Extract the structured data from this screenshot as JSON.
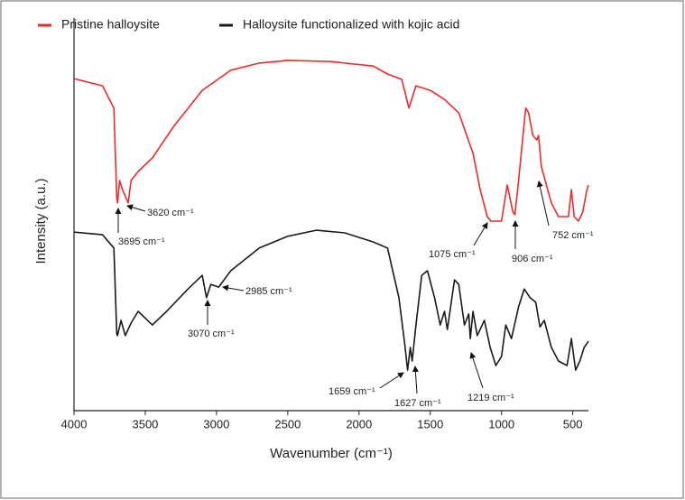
{
  "chart_data": {
    "type": "line",
    "xlabel": "Wavenumber (cm⁻¹)",
    "ylabel": "Intensity (a.u.)",
    "xlim": [
      4000,
      390
    ],
    "xticks": [
      4000,
      3500,
      3000,
      2500,
      2000,
      1500,
      1000,
      500
    ],
    "ylim": [
      0,
      100
    ],
    "grid": false,
    "legend": "top",
    "series": [
      {
        "name": "Pristine halloysite",
        "color": "#f0282a",
        "x": [
          4000,
          3800,
          3720,
          3700,
          3695,
          3680,
          3660,
          3620,
          3600,
          3550,
          3450,
          3300,
          3100,
          2900,
          2700,
          2500,
          2200,
          1900,
          1800,
          1700,
          1650,
          1600,
          1500,
          1400,
          1300,
          1200,
          1150,
          1100,
          1075,
          1000,
          960,
          920,
          906,
          880,
          830,
          810,
          780,
          752,
          740,
          720,
          650,
          600,
          530,
          510,
          490,
          460,
          430,
          400,
          390
        ],
        "values": [
          87.6,
          85.7,
          79.8,
          56.0,
          54.8,
          60.7,
          58.3,
          54.8,
          60.7,
          63.1,
          66.7,
          75.0,
          84.5,
          89.8,
          91.7,
          92.4,
          92.1,
          90.9,
          88.8,
          87.4,
          79.8,
          85.7,
          84.5,
          82.1,
          78.6,
          67.9,
          58.3,
          51.2,
          50.0,
          50.0,
          59.5,
          52.4,
          51.7,
          60.7,
          79.8,
          78.6,
          72.6,
          71.4,
          72.6,
          64.3,
          54.8,
          51.2,
          51.2,
          58.3,
          51.2,
          50.0,
          52.4,
          58.3,
          59.5
        ]
      },
      {
        "name": "Halloysite functionalized with kojic acid",
        "color": "#1a1a1a",
        "x": [
          4000,
          3800,
          3720,
          3700,
          3695,
          3670,
          3640,
          3600,
          3550,
          3450,
          3350,
          3200,
          3100,
          3070,
          3040,
          2985,
          2900,
          2700,
          2500,
          2300,
          2100,
          1900,
          1800,
          1720,
          1680,
          1659,
          1640,
          1627,
          1600,
          1560,
          1520,
          1470,
          1430,
          1400,
          1380,
          1330,
          1300,
          1260,
          1230,
          1219,
          1200,
          1170,
          1120,
          1080,
          1040,
          1000,
          970,
          930,
          880,
          840,
          800,
          760,
          730,
          700,
          650,
          600,
          540,
          510,
          480,
          450,
          420,
          390
        ],
        "values": [
          47.1,
          46.4,
          42.9,
          20.2,
          19.8,
          23.8,
          19.8,
          23.1,
          26.2,
          22.6,
          26.2,
          32.1,
          35.7,
          29.8,
          33.3,
          32.6,
          36.9,
          42.9,
          46.0,
          47.6,
          46.9,
          44.5,
          42.9,
          29.8,
          17.9,
          10.7,
          16.7,
          13.1,
          22.6,
          35.7,
          36.9,
          29.8,
          22.6,
          26.2,
          21.4,
          34.5,
          33.3,
          22.6,
          25.5,
          19.0,
          26.2,
          19.8,
          23.8,
          16.7,
          11.9,
          14.3,
          22.6,
          19.0,
          27.4,
          32.1,
          29.8,
          28.6,
          22.1,
          23.8,
          16.7,
          13.1,
          11.9,
          19.0,
          10.7,
          13.1,
          16.7,
          18.3
        ]
      }
    ],
    "annotations": [
      "3695 cm⁻¹",
      "3620 cm⁻¹",
      "3070 cm⁻¹",
      "2985 cm⁻¹",
      "1075 cm⁻¹",
      "906 cm⁻¹",
      "752 cm⁻¹",
      "1659 cm⁻¹",
      "1627 cm⁻¹",
      "1219 cm⁻¹"
    ]
  }
}
